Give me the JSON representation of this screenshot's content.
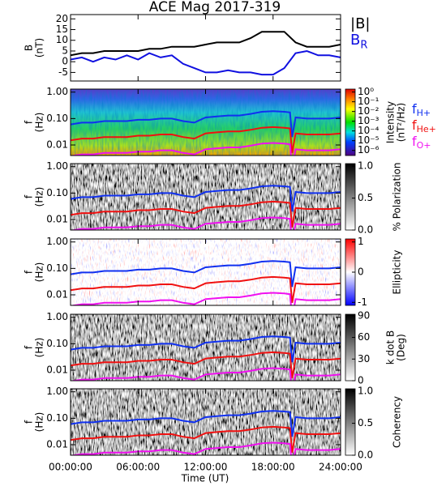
{
  "chart_data": [
    {
      "type": "line",
      "title": "ACE Mag 2017-319",
      "xlabel": "Time (UT)",
      "xlim": [
        0,
        24
      ],
      "xticks": [
        {
          "value": 0,
          "label": "00:00:00"
        },
        {
          "value": 6,
          "label": "06:00:00"
        },
        {
          "value": 12,
          "label": "12:00:00"
        },
        {
          "value": 18,
          "label": "18:00:00"
        },
        {
          "value": 24,
          "label": "24:00:00"
        }
      ],
      "ylabel": "B",
      "ylabel_unit": "(nT)",
      "ylim": [
        -9,
        22
      ],
      "yticks": [
        -5,
        0,
        5,
        10,
        15,
        20
      ],
      "x": [
        0,
        1,
        2,
        3,
        4,
        5,
        6,
        7,
        8,
        9,
        10,
        11,
        12,
        13,
        14,
        15,
        16,
        17,
        18,
        19,
        20,
        21,
        22,
        23,
        24
      ],
      "series": [
        {
          "name": "|B|",
          "color": "#000000",
          "values": [
            3,
            4,
            4,
            5,
            5,
            5,
            5,
            6,
            6,
            7,
            7,
            7,
            8,
            9,
            9,
            9,
            11,
            14,
            14,
            14,
            9,
            7,
            7,
            7,
            8
          ]
        },
        {
          "name": "B",
          "subscript": "R",
          "color": "#1010e0",
          "values": [
            1,
            2,
            0,
            2,
            1,
            3,
            1,
            4,
            2,
            3,
            -1,
            -3,
            -5,
            -5,
            -4,
            -5,
            -5,
            -6,
            -6,
            -3,
            4,
            5,
            3,
            3,
            2
          ]
        }
      ]
    },
    {
      "type": "spectrogram",
      "ylabel": "f",
      "ylabel_unit": "(Hz)",
      "log_y": true,
      "ylim": [
        0.004,
        1.3
      ],
      "yticks": [
        {
          "value": 0.01,
          "label": "0.01"
        },
        {
          "value": 0.1,
          "label": "0.10"
        },
        {
          "value": 1,
          "label": "1.00"
        }
      ],
      "colorbar": {
        "label": "Intensity",
        "unit": "(nT²/Hz)",
        "colormap": "rainbow",
        "log": true,
        "clim": [
          3e-07,
          2
        ],
        "ticks": [
          {
            "value": 1,
            "label": "10⁰"
          },
          {
            "value": 0.1,
            "label": "10⁻¹"
          },
          {
            "value": 0.01,
            "label": "10⁻²"
          },
          {
            "value": 0.001,
            "label": "10⁻³"
          },
          {
            "value": 0.0001,
            "label": "10⁻⁴"
          },
          {
            "value": 1e-05,
            "label": "10⁻⁵"
          },
          {
            "value": 1e-06,
            "label": "10⁻⁶"
          }
        ]
      },
      "x": [
        0,
        1,
        2,
        3,
        4,
        5,
        6,
        7,
        8,
        9,
        10,
        11,
        12,
        13,
        14,
        15,
        16,
        17,
        18,
        19,
        19.5,
        19.7,
        20,
        21,
        22,
        23,
        24
      ],
      "series": [
        {
          "name": "f",
          "subscript": "H+",
          "color": "#1030f0",
          "values": [
            0.06,
            0.07,
            0.07,
            0.08,
            0.08,
            0.08,
            0.09,
            0.09,
            0.1,
            0.1,
            0.08,
            0.07,
            0.11,
            0.12,
            0.13,
            0.13,
            0.15,
            0.18,
            0.19,
            0.18,
            0.17,
            0.02,
            0.11,
            0.1,
            0.1,
            0.1,
            0.11
          ]
        },
        {
          "name": "f",
          "subscript": "He+",
          "color": "#f01010",
          "values": [
            0.015,
            0.0175,
            0.0175,
            0.02,
            0.02,
            0.02,
            0.0225,
            0.0225,
            0.025,
            0.025,
            0.02,
            0.0175,
            0.0275,
            0.03,
            0.0325,
            0.0325,
            0.0375,
            0.045,
            0.0475,
            0.045,
            0.0425,
            0.005,
            0.0275,
            0.025,
            0.025,
            0.025,
            0.0275
          ]
        },
        {
          "name": "f",
          "subscript": "O+",
          "color": "#f010f0",
          "values": [
            0.0038,
            0.0044,
            0.0044,
            0.005,
            0.005,
            0.005,
            0.0056,
            0.0056,
            0.0063,
            0.0063,
            0.005,
            0.0044,
            0.0069,
            0.0075,
            0.0081,
            0.0081,
            0.0094,
            0.0113,
            0.0119,
            0.0113,
            0.0106,
            0.0013,
            0.0069,
            0.0063,
            0.0063,
            0.0063,
            0.0069
          ]
        }
      ]
    },
    {
      "type": "spectrogram",
      "ylabel": "f",
      "ylabel_unit": "(Hz)",
      "log_y": true,
      "ylim": [
        0.004,
        1.3
      ],
      "yticks": [
        {
          "value": 0.01,
          "label": "0.01"
        },
        {
          "value": 0.1,
          "label": "0.10"
        },
        {
          "value": 1,
          "label": "1.00"
        }
      ],
      "colorbar": {
        "label": "% Polarization",
        "colormap": "gray_r",
        "clim": [
          0,
          1.04
        ],
        "ticks": [
          {
            "value": 0,
            "label": "0.0"
          },
          0.5,
          {
            "value": 1,
            "label": "1.0"
          }
        ]
      }
    },
    {
      "type": "spectrogram",
      "ylabel": "f",
      "ylabel_unit": "(Hz)",
      "log_y": true,
      "ylim": [
        0.004,
        1.3
      ],
      "yticks": [
        {
          "value": 0.01,
          "label": "0.01"
        },
        {
          "value": 0.1,
          "label": "0.10"
        },
        {
          "value": 1,
          "label": "1.00"
        }
      ],
      "colorbar": {
        "label": "Ellipticity",
        "colormap": "bwr",
        "clim": [
          -1.1,
          1.1
        ],
        "ticks": [
          -1,
          0,
          1
        ]
      }
    },
    {
      "type": "spectrogram",
      "ylabel": "f",
      "ylabel_unit": "(Hz)",
      "log_y": true,
      "ylim": [
        0.004,
        1.3
      ],
      "yticks": [
        {
          "value": 0.01,
          "label": "0.01"
        },
        {
          "value": 0.1,
          "label": "0.10"
        },
        {
          "value": 1,
          "label": "1.00"
        }
      ],
      "colorbar": {
        "label": "k dot B",
        "unit": "(Deg)",
        "colormap": "gray_r",
        "clim": [
          0,
          92
        ],
        "ticks": [
          0,
          30,
          60,
          90
        ]
      }
    },
    {
      "type": "spectrogram",
      "ylabel": "f",
      "ylabel_unit": "(Hz)",
      "log_y": true,
      "ylim": [
        0.004,
        1.3
      ],
      "yticks": [
        {
          "value": 0.01,
          "label": "0.01"
        },
        {
          "value": 0.1,
          "label": "0.10"
        },
        {
          "value": 1,
          "label": "1.00"
        }
      ],
      "colorbar": {
        "label": "Coherency",
        "colormap": "gray_r",
        "clim": [
          0,
          1.04
        ],
        "ticks": [
          {
            "value": 0,
            "label": "0.0"
          },
          0.5,
          {
            "value": 1,
            "label": "1.0"
          }
        ]
      }
    }
  ]
}
